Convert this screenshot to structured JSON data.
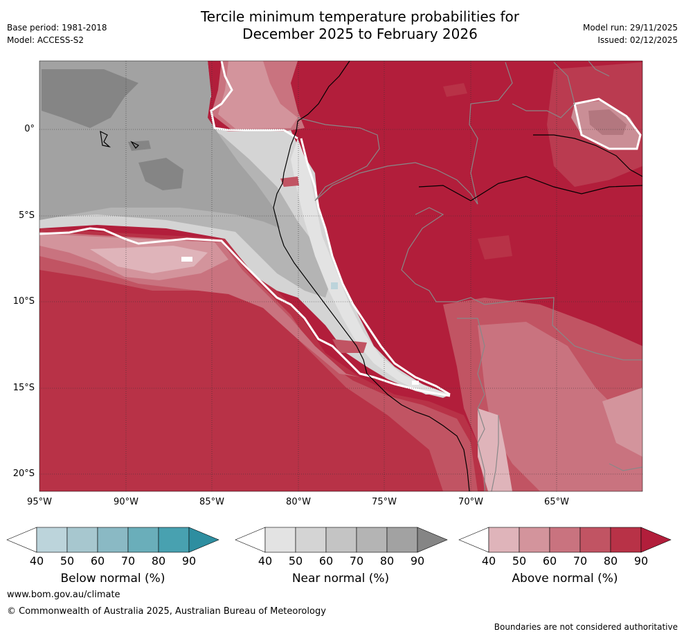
{
  "header": {
    "title_line1": "Tercile minimum temperature probabilities for",
    "title_line2": "December 2025 to February 2026",
    "base_period": "Base period: 1981-2018",
    "model": "Model: ACCESS-S2",
    "model_run": "Model run: 29/11/2025",
    "issued": "Issued: 02/12/2025"
  },
  "axes": {
    "lat_labels": [
      "0°",
      "5°S",
      "10°S",
      "15°S",
      "20°S"
    ],
    "lon_labels": [
      "95°W",
      "90°W",
      "85°W",
      "80°W",
      "75°W",
      "70°W",
      "65°W"
    ]
  },
  "legend": {
    "below": {
      "label": "Below normal (%)",
      "ticks": [
        "40",
        "50",
        "60",
        "70",
        "80",
        "90"
      ],
      "colors": [
        "#ffffff",
        "#bcd4db",
        "#a7c7cf",
        "#8ab9c4",
        "#6aaeba",
        "#48a1b0",
        "#2e8ea0"
      ]
    },
    "near": {
      "label": "Near normal (%)",
      "ticks": [
        "40",
        "50",
        "60",
        "70",
        "80",
        "90"
      ],
      "colors": [
        "#ffffff",
        "#e3e3e3",
        "#d4d4d4",
        "#c4c4c4",
        "#b4b4b4",
        "#a2a2a2",
        "#858585"
      ]
    },
    "above": {
      "label": "Above normal (%)",
      "ticks": [
        "40",
        "50",
        "60",
        "70",
        "80",
        "90"
      ],
      "colors": [
        "#ffffff",
        "#dfb4ba",
        "#d3949c",
        "#c9737f",
        "#c15463",
        "#b83247",
        "#b21e3b"
      ]
    }
  },
  "footer": {
    "url": "www.bom.gov.au/climate",
    "copyright": "© Commonwealth of Australia 2025, Australian Bureau of Meteorology",
    "disclaimer": "Boundaries are not considered authoritative"
  }
}
